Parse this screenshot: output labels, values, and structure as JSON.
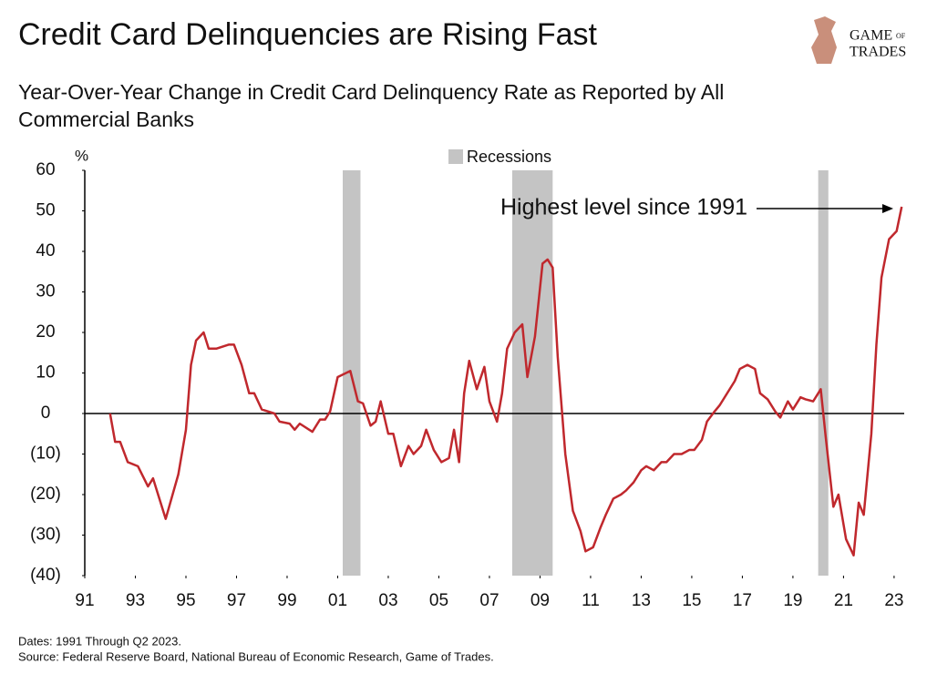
{
  "chart_data": {
    "type": "line",
    "title": "Credit Card Delinquencies are Rising Fast",
    "subtitle": [
      "Year-Over-Year Change in Credit Card Delinquency Rate as Reported by All",
      "Commercial Banks"
    ],
    "logo": [
      "GAME",
      "OF",
      "TRADES"
    ],
    "y_unit": "%",
    "legend": "Recessions",
    "annotation": "Highest level since 1991",
    "footnotes": [
      "Dates: 1991 Through Q2 2023.",
      "Source: Federal Reserve Board, National Bureau of Economic Research, Game of Trades."
    ],
    "color": "#c0282d",
    "recession_color": "#c4c4c4",
    "recessions": [
      [
        2001.2,
        2001.9
      ],
      [
        2007.9,
        2009.5
      ],
      [
        2020.0,
        2020.4
      ]
    ],
    "xlim": [
      1991,
      2023.4
    ],
    "xticks": [
      {
        "value": 1991,
        "label": "91"
      },
      {
        "value": 1993,
        "label": "93"
      },
      {
        "value": 1995,
        "label": "95"
      },
      {
        "value": 1997,
        "label": "97"
      },
      {
        "value": 1999,
        "label": "99"
      },
      {
        "value": 2001,
        "label": "01"
      },
      {
        "value": 2003,
        "label": "03"
      },
      {
        "value": 2005,
        "label": "05"
      },
      {
        "value": 2007,
        "label": "07"
      },
      {
        "value": 2009,
        "label": "09"
      },
      {
        "value": 2011,
        "label": "11"
      },
      {
        "value": 2013,
        "label": "13"
      },
      {
        "value": 2015,
        "label": "15"
      },
      {
        "value": 2017,
        "label": "17"
      },
      {
        "value": 2019,
        "label": "19"
      },
      {
        "value": 2021,
        "label": "21"
      },
      {
        "value": 2023,
        "label": "23"
      }
    ],
    "ylim": [
      -40,
      60
    ],
    "yticks": [
      60,
      50,
      40,
      30,
      20,
      10,
      0,
      {
        "value": -10,
        "label": "(10)"
      },
      {
        "value": -20,
        "label": "(20)"
      },
      {
        "value": -30,
        "label": "(30)"
      },
      {
        "value": -40,
        "label": "(40)"
      }
    ],
    "x": [
      1992.0,
      1992.2,
      1992.4,
      1992.7,
      1993.1,
      1993.5,
      1993.7,
      1994.2,
      1994.7,
      1995.0,
      1995.2,
      1995.4,
      1995.7,
      1995.9,
      1996.2,
      1996.7,
      1996.9,
      1997.2,
      1997.5,
      1997.7,
      1998.0,
      1998.5,
      1998.7,
      1999.1,
      1999.3,
      1999.5,
      2000.0,
      2000.3,
      2000.5,
      2000.7,
      2001.0,
      2001.5,
      2001.8,
      2002.0,
      2002.3,
      2002.5,
      2002.7,
      2003.0,
      2003.2,
      2003.5,
      2003.8,
      2004.0,
      2004.3,
      2004.5,
      2004.8,
      2005.1,
      2005.4,
      2005.6,
      2005.8,
      2006.0,
      2006.2,
      2006.5,
      2006.8,
      2007.0,
      2007.3,
      2007.5,
      2007.7,
      2008.0,
      2008.3,
      2008.5,
      2008.8,
      2009.1,
      2009.3,
      2009.5,
      2009.7,
      2010.0,
      2010.3,
      2010.6,
      2010.8,
      2011.1,
      2011.4,
      2011.6,
      2011.9,
      2012.2,
      2012.4,
      2012.7,
      2013.0,
      2013.2,
      2013.5,
      2013.8,
      2014.0,
      2014.3,
      2014.6,
      2014.9,
      2015.1,
      2015.4,
      2015.6,
      2015.9,
      2016.1,
      2016.4,
      2016.7,
      2016.9,
      2017.2,
      2017.5,
      2017.7,
      2018.0,
      2018.3,
      2018.5,
      2018.8,
      2019.0,
      2019.3,
      2019.5,
      2019.8,
      2020.1,
      2020.3,
      2020.6,
      2020.8,
      2021.1,
      2021.4,
      2021.6,
      2021.8,
      2022.1,
      2022.3,
      2022.5,
      2022.8,
      2023.1,
      2023.3
    ],
    "values": [
      0,
      -7,
      -7,
      -12,
      -13,
      -18,
      -16,
      -26,
      -15,
      -4,
      12,
      18,
      20,
      16,
      16,
      17,
      17,
      12,
      5,
      5,
      1,
      0,
      -2,
      -2.5,
      -4,
      -2.5,
      -4.5,
      -1.5,
      -1.5,
      0.5,
      9,
      10.5,
      3,
      2.5,
      -3,
      -2,
      3,
      -5,
      -5,
      -13,
      -8,
      -10,
      -8,
      -4,
      -9,
      -12,
      -11,
      -4,
      -12,
      5,
      13,
      6,
      11.5,
      3,
      -2,
      5,
      16,
      20,
      22,
      9,
      19,
      37,
      38,
      36,
      14,
      -10,
      -24,
      -29,
      -34,
      -33,
      -28,
      -25,
      -21,
      -20,
      -19,
      -17,
      -14,
      -13,
      -14,
      -12,
      -12,
      -10,
      -10,
      -9,
      -9,
      -6.5,
      -2,
      0.5,
      2,
      5,
      8,
      11,
      12,
      11,
      5,
      3.5,
      0.5,
      -1,
      3,
      1,
      4,
      3.5,
      3,
      6,
      -6,
      -23,
      -20,
      -31,
      -35,
      -22,
      -25,
      -5,
      17,
      33.5,
      43,
      45,
      51
    ]
  }
}
